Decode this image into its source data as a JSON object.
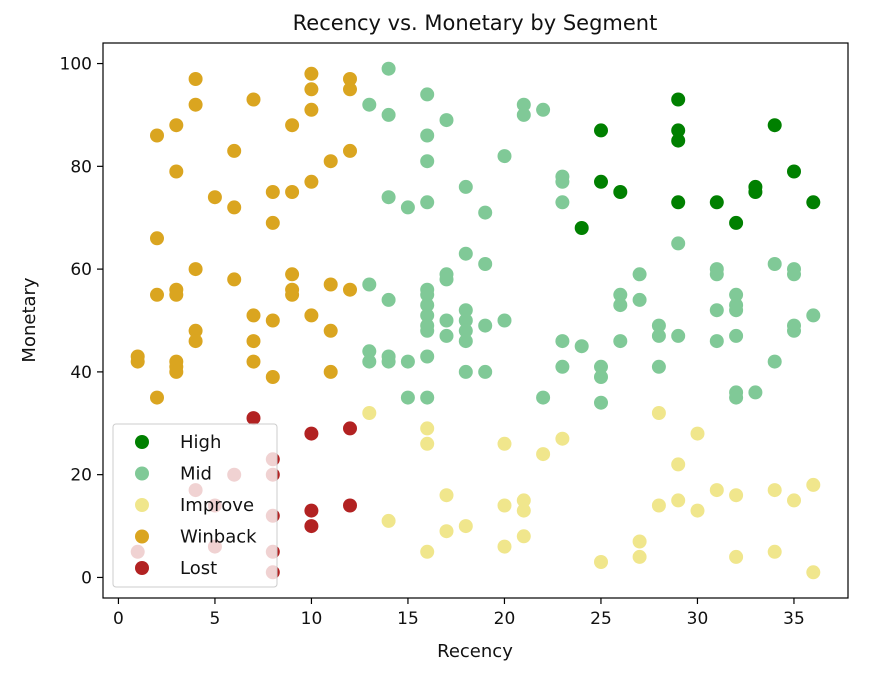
{
  "chart_data": {
    "type": "scatter",
    "title": "Recency vs. Monetary by Segment",
    "xlabel": "Recency",
    "ylabel": "Monetary",
    "xlim": [
      -0.8,
      37.8
    ],
    "ylim": [
      -4,
      104
    ],
    "xticks": [
      0,
      5,
      10,
      15,
      20,
      25,
      30,
      35
    ],
    "yticks": [
      0,
      20,
      40,
      60,
      80,
      100
    ],
    "grid": false,
    "legend_position": "lower-left",
    "series": [
      {
        "name": "High",
        "color": "#008000",
        "points": [
          [
            25,
            87
          ],
          [
            25,
            77
          ],
          [
            26,
            75
          ],
          [
            24,
            68
          ],
          [
            29,
            93
          ],
          [
            29,
            87
          ],
          [
            29,
            85
          ],
          [
            29,
            73
          ],
          [
            31,
            73
          ],
          [
            32,
            69
          ],
          [
            33,
            76
          ],
          [
            33,
            75
          ],
          [
            34,
            88
          ],
          [
            35,
            79
          ],
          [
            36,
            73
          ]
        ]
      },
      {
        "name": "Mid",
        "color": "#80c997",
        "points": [
          [
            13,
            92
          ],
          [
            14,
            99
          ],
          [
            14,
            90
          ],
          [
            14,
            74
          ],
          [
            15,
            72
          ],
          [
            16,
            94
          ],
          [
            16,
            86
          ],
          [
            16,
            81
          ],
          [
            16,
            73
          ],
          [
            17,
            89
          ],
          [
            18,
            76
          ],
          [
            19,
            71
          ],
          [
            20,
            82
          ],
          [
            21,
            92
          ],
          [
            21,
            90
          ],
          [
            22,
            91
          ],
          [
            23,
            78
          ],
          [
            23,
            77
          ],
          [
            23,
            73
          ],
          [
            13,
            57
          ],
          [
            13,
            44
          ],
          [
            13,
            42
          ],
          [
            14,
            54
          ],
          [
            14,
            43
          ],
          [
            14,
            42
          ],
          [
            15,
            42
          ],
          [
            15,
            35
          ],
          [
            16,
            56
          ],
          [
            16,
            55
          ],
          [
            16,
            53
          ],
          [
            16,
            51
          ],
          [
            16,
            49
          ],
          [
            16,
            48
          ],
          [
            16,
            43
          ],
          [
            16,
            35
          ],
          [
            17,
            59
          ],
          [
            17,
            58
          ],
          [
            17,
            50
          ],
          [
            17,
            47
          ],
          [
            18,
            63
          ],
          [
            18,
            52
          ],
          [
            18,
            50
          ],
          [
            18,
            48
          ],
          [
            18,
            46
          ],
          [
            18,
            40
          ],
          [
            19,
            61
          ],
          [
            19,
            49
          ],
          [
            19,
            40
          ],
          [
            20,
            50
          ],
          [
            22,
            35
          ],
          [
            23,
            46
          ],
          [
            23,
            41
          ],
          [
            24,
            45
          ],
          [
            25,
            41
          ],
          [
            25,
            39
          ],
          [
            25,
            34
          ],
          [
            26,
            55
          ],
          [
            26,
            53
          ],
          [
            26,
            46
          ],
          [
            27,
            59
          ],
          [
            27,
            54
          ],
          [
            28,
            49
          ],
          [
            28,
            47
          ],
          [
            28,
            41
          ],
          [
            29,
            65
          ],
          [
            29,
            47
          ],
          [
            31,
            60
          ],
          [
            31,
            59
          ],
          [
            31,
            52
          ],
          [
            31,
            46
          ],
          [
            32,
            55
          ],
          [
            32,
            53
          ],
          [
            32,
            52
          ],
          [
            32,
            47
          ],
          [
            32,
            36
          ],
          [
            32,
            35
          ],
          [
            33,
            36
          ],
          [
            34,
            61
          ],
          [
            34,
            42
          ],
          [
            35,
            60
          ],
          [
            35,
            59
          ],
          [
            35,
            49
          ],
          [
            35,
            48
          ],
          [
            36,
            51
          ]
        ]
      },
      {
        "name": "Improve",
        "color": "#f0e68c",
        "points": [
          [
            13,
            32
          ],
          [
            14,
            11
          ],
          [
            16,
            29
          ],
          [
            16,
            26
          ],
          [
            16,
            5
          ],
          [
            17,
            16
          ],
          [
            17,
            9
          ],
          [
            18,
            10
          ],
          [
            20,
            26
          ],
          [
            20,
            14
          ],
          [
            20,
            6
          ],
          [
            21,
            15
          ],
          [
            21,
            13
          ],
          [
            21,
            8
          ],
          [
            22,
            24
          ],
          [
            23,
            27
          ],
          [
            25,
            3
          ],
          [
            27,
            7
          ],
          [
            27,
            4
          ],
          [
            28,
            32
          ],
          [
            28,
            14
          ],
          [
            29,
            22
          ],
          [
            29,
            15
          ],
          [
            30,
            28
          ],
          [
            30,
            13
          ],
          [
            31,
            17
          ],
          [
            32,
            16
          ],
          [
            32,
            4
          ],
          [
            34,
            17
          ],
          [
            34,
            5
          ],
          [
            35,
            15
          ],
          [
            36,
            18
          ],
          [
            36,
            1
          ]
        ]
      },
      {
        "name": "Winback",
        "color": "#daa520",
        "points": [
          [
            2,
            86
          ],
          [
            3,
            88
          ],
          [
            3,
            79
          ],
          [
            4,
            97
          ],
          [
            4,
            92
          ],
          [
            5,
            74
          ],
          [
            6,
            83
          ],
          [
            6,
            72
          ],
          [
            7,
            93
          ],
          [
            8,
            75
          ],
          [
            8,
            69
          ],
          [
            9,
            88
          ],
          [
            9,
            75
          ],
          [
            10,
            98
          ],
          [
            10,
            95
          ],
          [
            10,
            91
          ],
          [
            10,
            77
          ],
          [
            11,
            81
          ],
          [
            12,
            97
          ],
          [
            12,
            95
          ],
          [
            12,
            83
          ],
          [
            2,
            66
          ],
          [
            1,
            43
          ],
          [
            1,
            42
          ],
          [
            2,
            55
          ],
          [
            2,
            35
          ],
          [
            3,
            56
          ],
          [
            3,
            55
          ],
          [
            3,
            42
          ],
          [
            3,
            41
          ],
          [
            3,
            40
          ],
          [
            4,
            60
          ],
          [
            4,
            48
          ],
          [
            4,
            46
          ],
          [
            6,
            58
          ],
          [
            7,
            51
          ],
          [
            7,
            46
          ],
          [
            7,
            42
          ],
          [
            8,
            50
          ],
          [
            8,
            39
          ],
          [
            9,
            59
          ],
          [
            9,
            56
          ],
          [
            9,
            55
          ],
          [
            10,
            51
          ],
          [
            11,
            57
          ],
          [
            11,
            48
          ],
          [
            11,
            40
          ],
          [
            12,
            56
          ]
        ]
      },
      {
        "name": "Lost",
        "color": "#b22222",
        "points": [
          [
            1,
            5
          ],
          [
            4,
            17
          ],
          [
            5,
            14
          ],
          [
            5,
            6
          ],
          [
            6,
            20
          ],
          [
            7,
            31
          ],
          [
            8,
            23
          ],
          [
            8,
            20
          ],
          [
            8,
            12
          ],
          [
            8,
            5
          ],
          [
            8,
            1
          ],
          [
            10,
            28
          ],
          [
            10,
            13
          ],
          [
            10,
            10
          ],
          [
            12,
            29
          ],
          [
            12,
            14
          ]
        ]
      }
    ]
  }
}
